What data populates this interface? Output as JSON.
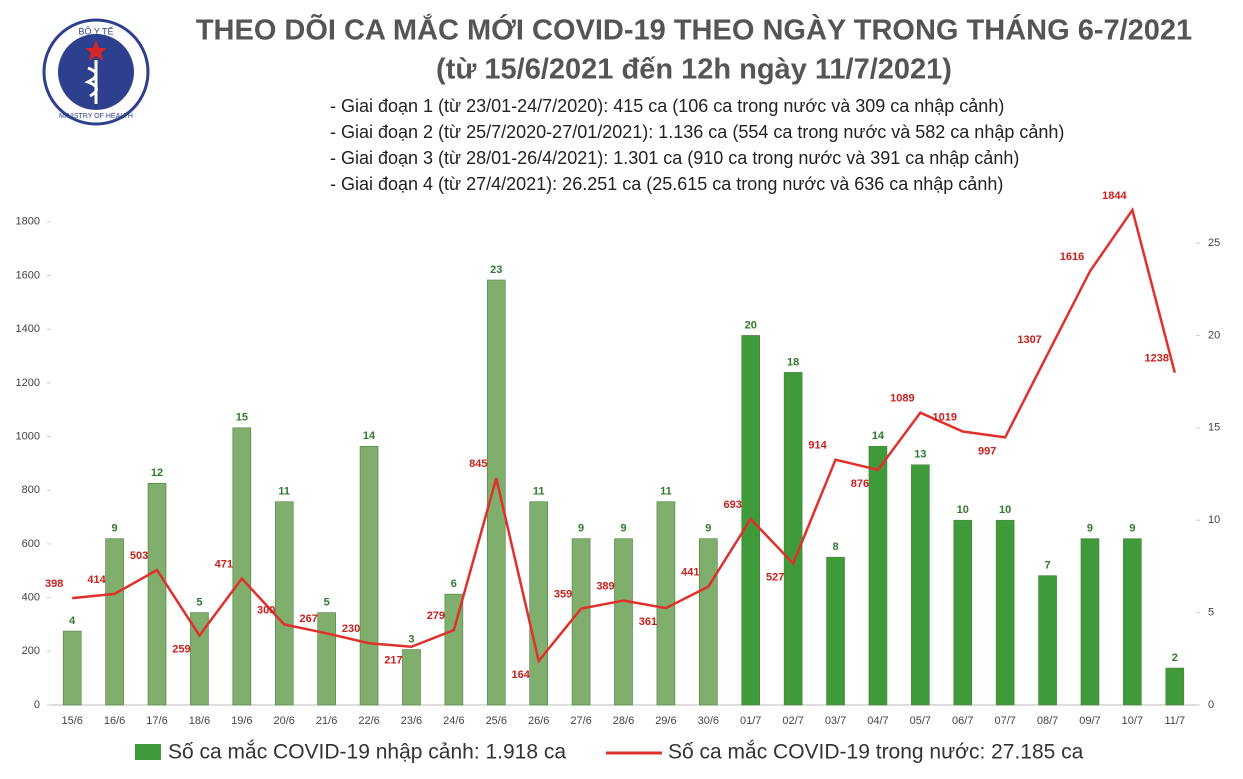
{
  "logo": {
    "top": "BỘ Y TẾ",
    "bottom": "MINISTRY OF HEALTH"
  },
  "chart_data": {
    "type": "bar-line",
    "title": "THEO DÕI CA MẮC MỚI COVID-19 THEO NGÀY TRONG THÁNG 6-7/2021",
    "subtitle": "(từ 15/6/2021 đến 12h ngày 11/7/2021)",
    "annotations": [
      "- Giai đoạn 1 (từ 23/01-24/7/2020): 415 ca (106 ca trong nước và 309 ca nhập cảnh)",
      "- Giai đoạn 2 (từ 25/7/2020-27/01/2021): 1.136 ca (554 ca trong nước và 582 ca nhập cảnh)",
      "- Giai đoạn 3 (từ 28/01-26/4/2021): 1.301 ca (910 ca trong nước và 391 ca nhập cảnh)",
      "- Giai đoạn 4 (từ 27/4/2021): 26.251 ca (25.615 ca trong nước và 636 ca nhập cảnh)"
    ],
    "categories": [
      "15/6",
      "16/6",
      "17/6",
      "18/6",
      "19/6",
      "20/6",
      "21/6",
      "22/6",
      "23/6",
      "24/6",
      "25/6",
      "26/6",
      "27/6",
      "28/6",
      "29/6",
      "30/6",
      "01/7",
      "02/7",
      "03/7",
      "04/7",
      "05/7",
      "06/7",
      "07/7",
      "08/7",
      "09/7",
      "10/7",
      "11/7"
    ],
    "series": [
      {
        "name": "Số ca mắc COVID-19 nhập cảnh: 1.918 ca",
        "type": "bar",
        "axis": "y2",
        "color": "#3f9a3a",
        "colors": [
          "#80ae6c",
          "#80ae6c",
          "#80ae6c",
          "#80ae6c",
          "#80ae6c",
          "#80ae6c",
          "#80ae6c",
          "#80ae6c",
          "#80ae6c",
          "#80ae6c",
          "#80ae6c",
          "#80ae6c",
          "#80ae6c",
          "#80ae6c",
          "#80ae6c",
          "#80ae6c",
          "#3f9a3a",
          "#3f9a3a",
          "#3f9a3a",
          "#3f9a3a",
          "#3f9a3a",
          "#3f9a3a",
          "#3f9a3a",
          "#3f9a3a",
          "#3f9a3a",
          "#3f9a3a",
          "#3f9a3a"
        ],
        "values": [
          4,
          9,
          12,
          5,
          15,
          11,
          5,
          14,
          3,
          6,
          23,
          11,
          9,
          9,
          11,
          9,
          20,
          18,
          8,
          14,
          13,
          10,
          10,
          7,
          9,
          9,
          2
        ]
      },
      {
        "name": "Số ca mắc COVID-19 trong nước: 27.185 ca",
        "type": "line",
        "color": "#e0302c",
        "values": [
          398,
          414,
          503,
          259,
          471,
          300,
          267,
          230,
          217,
          279,
          845,
          164,
          359,
          389,
          361,
          441,
          693,
          527,
          914,
          876,
          1089,
          1019,
          997,
          1307,
          1616,
          1844,
          1238
        ]
      }
    ],
    "ylim": [
      0,
      1900
    ],
    "yticks": [
      0,
      200,
      400,
      600,
      800,
      1000,
      1200,
      1400,
      1600,
      1800
    ],
    "y2lim": [
      0,
      27.6
    ],
    "y2ticks": [
      0,
      5,
      10,
      15,
      20,
      25
    ]
  }
}
